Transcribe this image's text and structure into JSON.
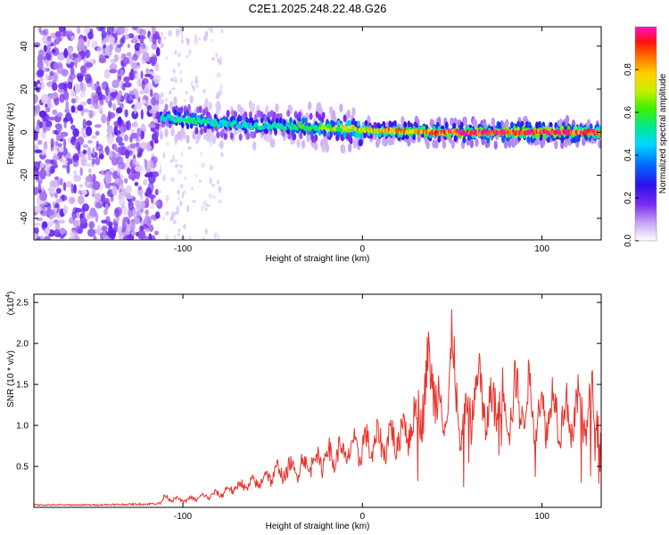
{
  "title": "C2E1.2025.248.22.48.G26",
  "colors": {
    "snr_line": "#e8342c",
    "axis": "#000000",
    "colormap": [
      "#ffffff",
      "#c9a8f2",
      "#7a2cf0",
      "#2a10e8",
      "#0070ff",
      "#00d8ff",
      "#00e890",
      "#40f000",
      "#c8f000",
      "#ffd000",
      "#ff7000",
      "#ff1010",
      "#ff10c0"
    ]
  },
  "chart_data": [
    {
      "type": "heatmap",
      "xlabel": "Height of straight line (km)",
      "ylabel": "Frequency (Hz)",
      "xlim": [
        -183,
        133
      ],
      "ylim": [
        -50,
        49
      ],
      "xticks": [
        -100,
        0,
        100
      ],
      "yticks": [
        -40,
        -20,
        0,
        20,
        40
      ],
      "colorbar": {
        "label": "Normalized spectral amplitude",
        "range": [
          0,
          1
        ],
        "ticks": [
          "0.0",
          "0.2",
          "0.4",
          "0.6",
          "0.8"
        ]
      },
      "ridge": [
        {
          "x": -112,
          "freq": 7,
          "amp": 0.45
        },
        {
          "x": -100,
          "freq": 6,
          "amp": 0.5
        },
        {
          "x": -80,
          "freq": 4,
          "amp": 0.48
        },
        {
          "x": -60,
          "freq": 3,
          "amp": 0.45
        },
        {
          "x": -40,
          "freq": 3,
          "amp": 0.5
        },
        {
          "x": -20,
          "freq": 2,
          "amp": 0.6
        },
        {
          "x": 0,
          "freq": 1,
          "amp": 0.7
        },
        {
          "x": 20,
          "freq": 0.5,
          "amp": 0.8
        },
        {
          "x": 40,
          "freq": 0,
          "amp": 0.85
        },
        {
          "x": 60,
          "freq": 0,
          "amp": 0.95
        },
        {
          "x": 80,
          "freq": 0,
          "amp": 0.95
        },
        {
          "x": 100,
          "freq": 0,
          "amp": 0.95
        },
        {
          "x": 133,
          "freq": 0,
          "amp": 0.9
        }
      ],
      "noise_region": {
        "x_from": -183,
        "x_to": -113
      }
    },
    {
      "type": "line",
      "xlabel": "Height of straight line (km)",
      "ylabel": "SNR (10 * v/v)",
      "yscale_label": "(x10",
      "yscale_exponent": "4",
      "yscale_suffix": ")",
      "xlim": [
        -183,
        133
      ],
      "ylim": [
        0,
        2.6
      ],
      "xticks": [
        -100,
        0,
        100
      ],
      "yticks": [
        "0.5",
        "1.0",
        "1.5",
        "2.0",
        "2.5"
      ],
      "series": [
        {
          "name": "SNR",
          "x": [
            -183,
            -150,
            -120,
            -113,
            -110,
            -100,
            -90,
            -80,
            -70,
            -60,
            -50,
            -40,
            -30,
            -20,
            -10,
            0,
            10,
            20,
            30,
            35,
            40,
            45,
            50,
            55,
            60,
            65,
            70,
            75,
            80,
            85,
            90,
            95,
            100,
            105,
            110,
            115,
            120,
            125,
            130,
            133
          ],
          "values": [
            0.03,
            0.03,
            0.04,
            0.05,
            0.15,
            0.1,
            0.15,
            0.2,
            0.3,
            0.35,
            0.5,
            0.55,
            0.65,
            0.75,
            0.8,
            0.9,
            0.95,
            1.05,
            1.3,
            1.8,
            2.0,
            1.2,
            2.2,
            1.0,
            1.5,
            1.8,
            1.3,
            1.7,
            1.4,
            1.6,
            1.5,
            1.6,
            1.3,
            1.5,
            1.4,
            1.3,
            1.4,
            1.3,
            1.6,
            1.2
          ]
        }
      ]
    }
  ]
}
